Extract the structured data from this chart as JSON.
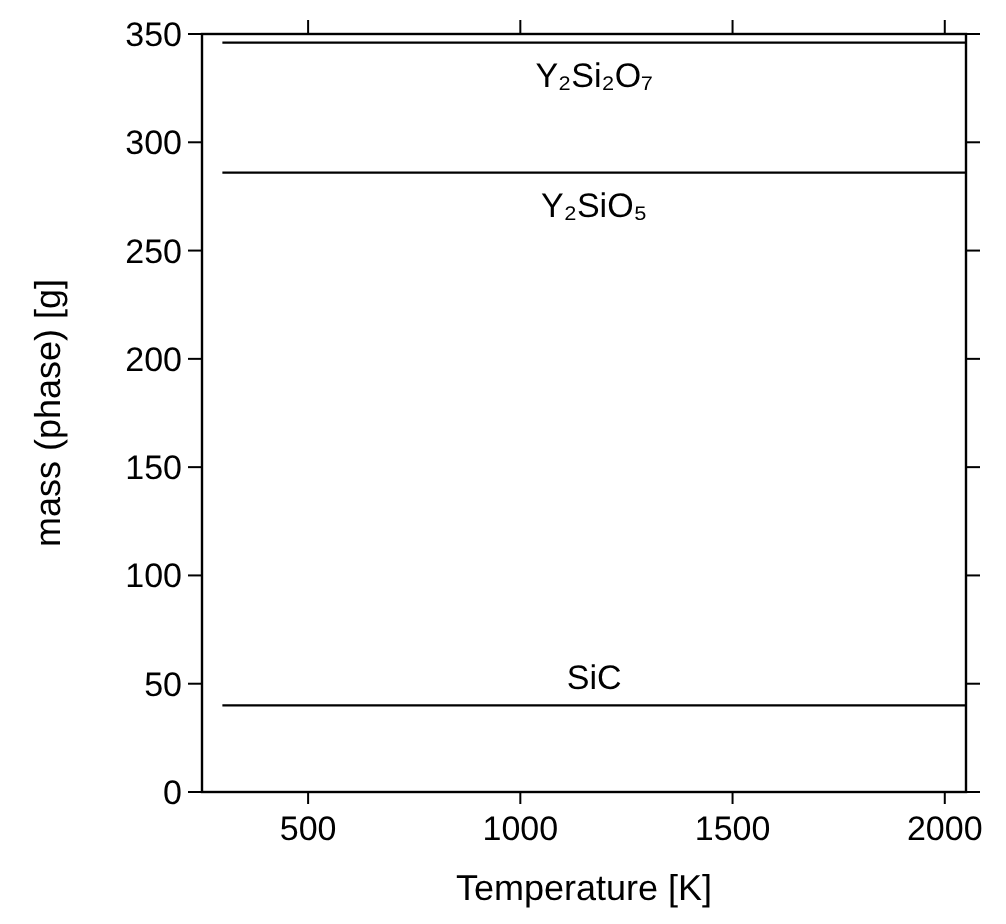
{
  "chart_data": {
    "type": "line",
    "xlabel": "Temperature [K]",
    "ylabel": "mass (phase) [g]",
    "xlim": [
      250,
      2050
    ],
    "xticks": [
      500,
      1000,
      1500,
      2000
    ],
    "ylim": [
      0,
      350
    ],
    "yticks": [
      0,
      50,
      100,
      150,
      200,
      250,
      300,
      350
    ],
    "x": [
      298,
      2050
    ],
    "grid": false,
    "marker": "none",
    "line_style": "solid",
    "series": [
      {
        "name": "Y₂Si₂O₇",
        "color": "#000000",
        "values": [
          346,
          346
        ]
      },
      {
        "name": "Y₂SiO₅",
        "color": "#000000",
        "values": [
          286,
          286
        ]
      },
      {
        "name": "SiC",
        "color": "#000000",
        "values": [
          40,
          40
        ]
      }
    ]
  }
}
